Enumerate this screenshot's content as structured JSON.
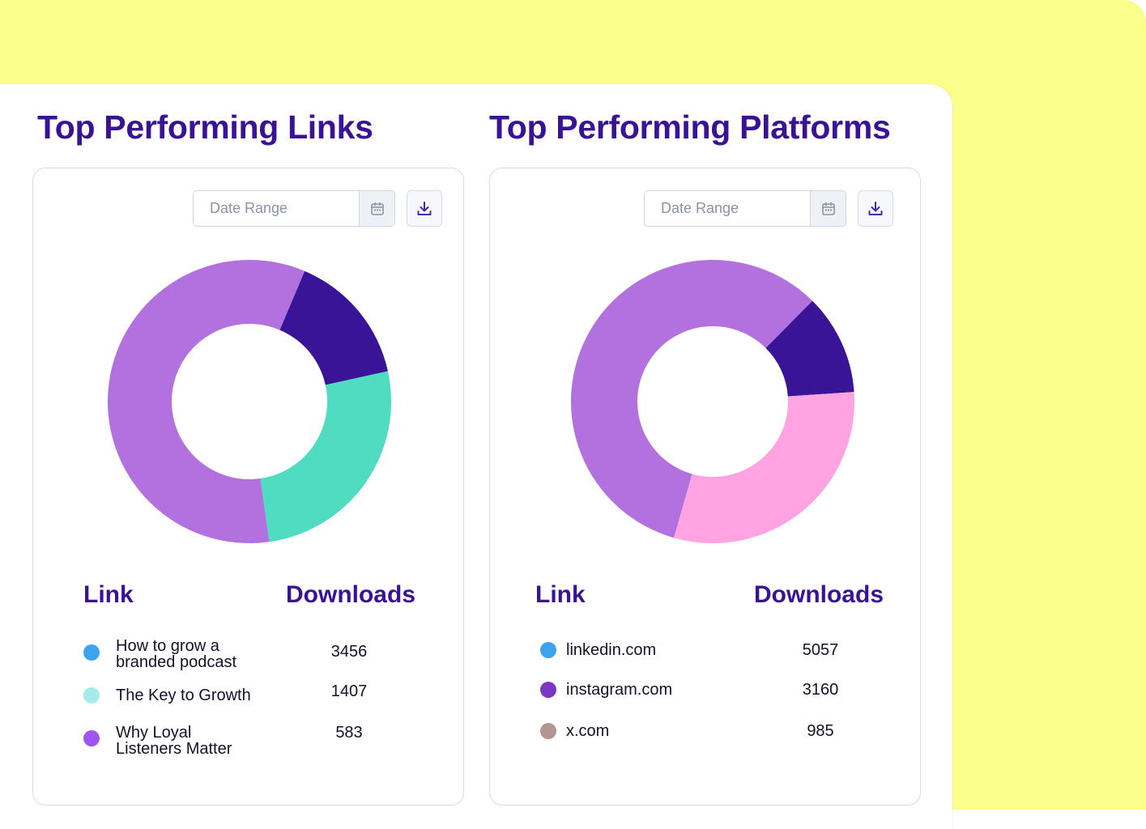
{
  "panels": [
    {
      "title": "Top Performing Links",
      "date_placeholder": "Date Range",
      "col_label": "Link",
      "col_value": "Downloads",
      "chart_data": {
        "type": "pie",
        "donut": true,
        "slices": [
          {
            "value": 0.152,
            "color": "#3a1496"
          },
          {
            "value": 0.262,
            "color": "#4fdcc0"
          },
          {
            "value": 0.586,
            "color": "#b370df"
          }
        ]
      },
      "rows": [
        {
          "label": "How to grow a branded podcast",
          "value": "3456",
          "color": "#3ba3ef"
        },
        {
          "label": "The Key to Growth",
          "value": "1407",
          "color": "#a3ecea"
        },
        {
          "label": "Why Loyal Listeners Matter",
          "value": "583",
          "color": "#9f55ef"
        }
      ]
    },
    {
      "title": "Top Performing Platforms",
      "date_placeholder": "Date Range",
      "col_label": "Link",
      "col_value": "Downloads",
      "chart_data": {
        "type": "pie",
        "donut": true,
        "slices": [
          {
            "value": 0.115,
            "color": "#3a1496"
          },
          {
            "value": 0.305,
            "color": "#ffa3e2"
          },
          {
            "value": 0.58,
            "color": "#b370df"
          }
        ]
      },
      "rows": [
        {
          "label": "linkedin.com",
          "value": "5057",
          "color": "#3ba3ef"
        },
        {
          "label": "instagram.com",
          "value": "3160",
          "color": "#7b38c4"
        },
        {
          "label": "x.com",
          "value": "985",
          "color": "#b5958f"
        }
      ]
    }
  ]
}
